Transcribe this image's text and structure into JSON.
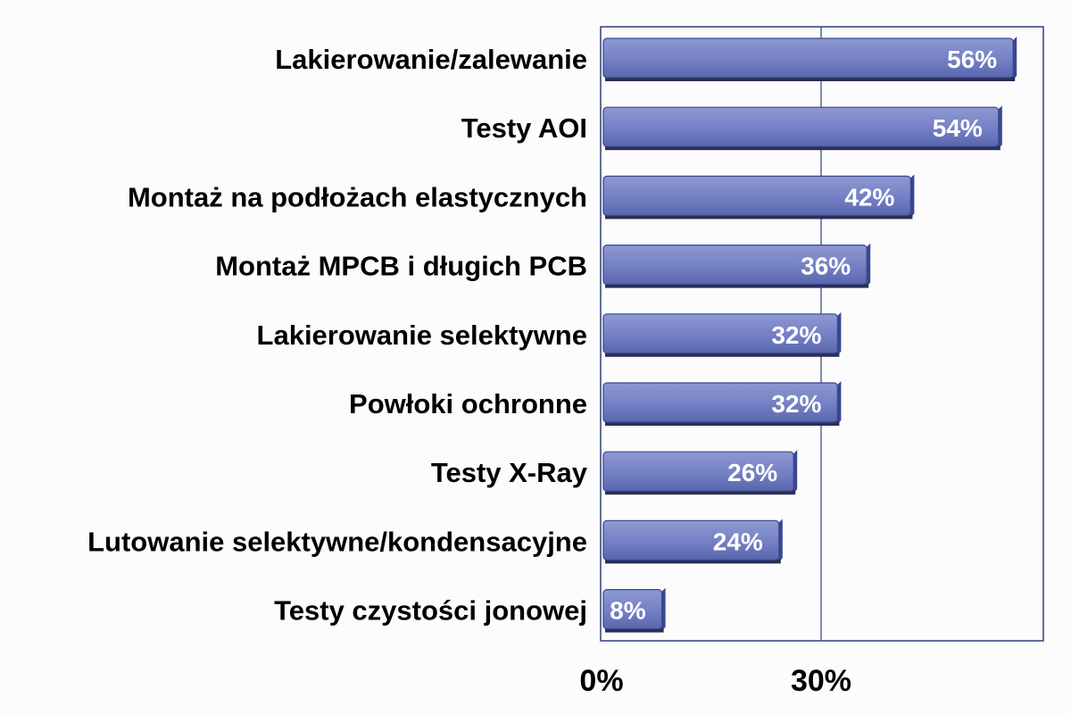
{
  "chart_data": {
    "type": "bar",
    "orientation": "horizontal",
    "categories": [
      "Lakierowanie/zalewanie",
      "Testy AOI",
      "Montaż na podłożach elastycznych",
      "Montaż MPCB i długich PCB",
      "Lakierowanie selektywne",
      "Powłoki ochronne",
      "Testy X-Ray",
      "Lutowanie selektywne/kondensacyjne",
      "Testy czystości jonowej"
    ],
    "values": [
      56,
      54,
      42,
      36,
      32,
      32,
      26,
      24,
      8
    ],
    "value_labels": [
      "56%",
      "54%",
      "42%",
      "36%",
      "32%",
      "32%",
      "26%",
      "24%",
      "8%"
    ],
    "xlim": [
      0,
      60
    ],
    "x_ticks": [
      0,
      30
    ],
    "x_tick_labels": [
      "0%",
      "30%"
    ],
    "grid": true,
    "colors": {
      "bar_fill": "#7a86c8",
      "bar_dark": "#3a4690",
      "axis": "#2e3f7a"
    }
  }
}
